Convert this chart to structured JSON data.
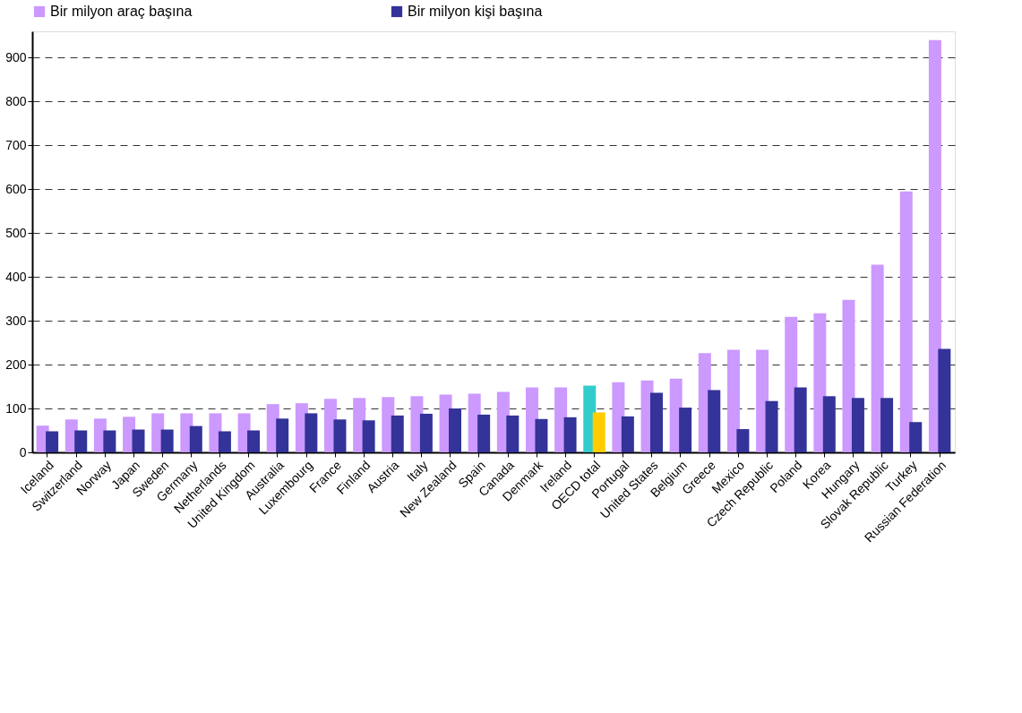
{
  "chart_data": {
    "type": "bar",
    "categories": [
      "Iceland",
      "Switzerland",
      "Norway",
      "Japan",
      "Sweden",
      "Germany",
      "Netherlands",
      "United Kingdom",
      "Australia",
      "Luxembourg",
      "France",
      "Finland",
      "Austria",
      "Italy",
      "New Zealand",
      "Spain",
      "Canada",
      "Denmark",
      "Ireland",
      "OECD total",
      "Portugal",
      "United States",
      "Belgium",
      "Greece",
      "Mexico",
      "Czech Republic",
      "Poland",
      "Korea",
      "Hungary",
      "Slovak Republic",
      "Turkey",
      "Russian Federation"
    ],
    "series": [
      {
        "name": "Bir milyon araç başına",
        "color": "#cc99ff",
        "colors": [
          "#cc99ff",
          "#cc99ff",
          "#cc99ff",
          "#cc99ff",
          "#cc99ff",
          "#cc99ff",
          "#cc99ff",
          "#cc99ff",
          "#cc99ff",
          "#cc99ff",
          "#cc99ff",
          "#cc99ff",
          "#cc99ff",
          "#cc99ff",
          "#cc99ff",
          "#cc99ff",
          "#cc99ff",
          "#cc99ff",
          "#cc99ff",
          "#33cccc",
          "#cc99ff",
          "#cc99ff",
          "#cc99ff",
          "#cc99ff",
          "#cc99ff",
          "#cc99ff",
          "#cc99ff",
          "#cc99ff",
          "#cc99ff",
          "#cc99ff",
          "#cc99ff",
          "#cc99ff"
        ],
        "values": [
          61,
          75,
          77,
          81,
          89,
          89,
          89,
          89,
          110,
          112,
          122,
          124,
          126,
          128,
          132,
          134,
          138,
          148,
          148,
          152,
          160,
          164,
          168,
          226,
          234,
          234,
          309,
          317,
          348,
          428,
          595,
          940
        ]
      },
      {
        "name": "Bir milyon kişi başına",
        "color": "#333399",
        "colors": [
          "#333399",
          "#333399",
          "#333399",
          "#333399",
          "#333399",
          "#333399",
          "#333399",
          "#333399",
          "#333399",
          "#333399",
          "#333399",
          "#333399",
          "#333399",
          "#333399",
          "#333399",
          "#333399",
          "#333399",
          "#333399",
          "#333399",
          "#ffcc00",
          "#333399",
          "#333399",
          "#333399",
          "#333399",
          "#333399",
          "#333399",
          "#333399",
          "#333399",
          "#333399",
          "#333399",
          "#333399",
          "#333399"
        ],
        "values": [
          48,
          50,
          50,
          52,
          52,
          60,
          48,
          50,
          77,
          89,
          75,
          73,
          84,
          88,
          100,
          86,
          84,
          76,
          80,
          91,
          82,
          136,
          102,
          142,
          53,
          117,
          148,
          128,
          124,
          124,
          69,
          236
        ]
      }
    ],
    "ylim": [
      0,
      960
    ],
    "yticks": [
      0,
      100,
      200,
      300,
      400,
      500,
      600,
      700,
      800,
      900
    ],
    "grid": "y",
    "legend": "top"
  }
}
